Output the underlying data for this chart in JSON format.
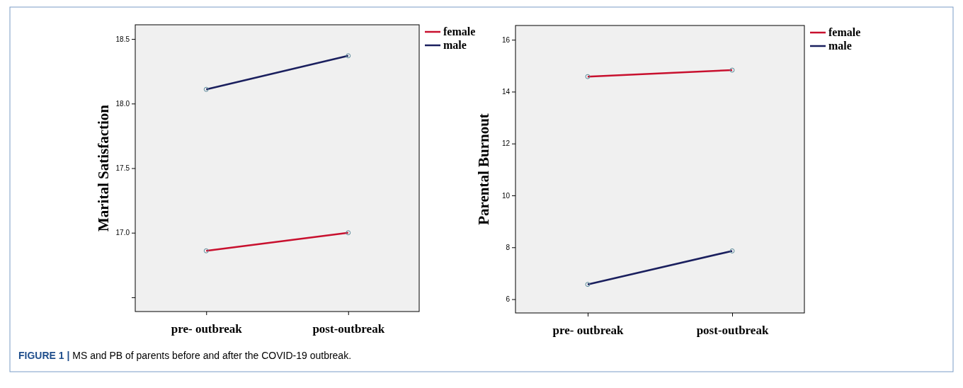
{
  "chart_data": [
    {
      "type": "line",
      "ylabel": "Marital Satisfaction",
      "categories": [
        "pre- outbreak",
        "post-outbreak"
      ],
      "ylim": [
        16.39,
        18.61
      ],
      "yticks": [
        {
          "value": 16.5,
          "label": null
        },
        {
          "value": 17,
          "label": "17.0"
        },
        17.5,
        {
          "value": 18,
          "label": "18.0"
        },
        18.5
      ],
      "marker": "circle",
      "legend": "top right",
      "grid": false,
      "series": [
        {
          "name": "female",
          "color": "#c8102e",
          "values": [
            16.86,
            17.0
          ]
        },
        {
          "name": "male",
          "color": "#1a1f5e",
          "values": [
            18.11,
            18.37
          ]
        }
      ],
      "annotations": [
        "FIGURE 1 | MS and PB of parents before and after the COVID-19 outbreak."
      ]
    },
    {
      "type": "line",
      "ylabel": "Parental Burnout",
      "categories": [
        "pre- outbreak",
        "post-outbreak"
      ],
      "ylim": [
        5.47,
        16.55
      ],
      "yticks": [
        6,
        8,
        10,
        12,
        14,
        16
      ],
      "marker": "circle",
      "legend": "top right",
      "grid": false,
      "series": [
        {
          "name": "female",
          "color": "#c8102e",
          "values": [
            14.58,
            14.83
          ]
        },
        {
          "name": "male",
          "color": "#1a1f5e",
          "values": [
            6.57,
            7.86
          ]
        }
      ]
    }
  ]
}
